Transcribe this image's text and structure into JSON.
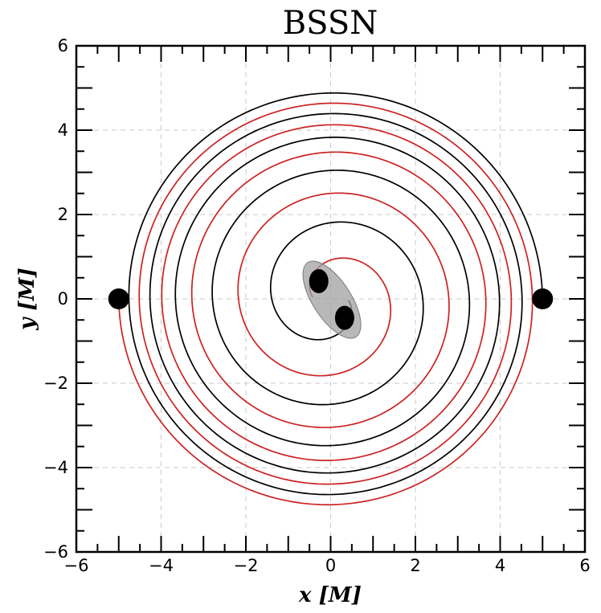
{
  "chart_data": {
    "type": "line",
    "title": "BSSN",
    "xlabel": "x [M]",
    "ylabel": "y [M]",
    "xlim": [
      -6,
      6
    ],
    "ylim": [
      -6,
      6
    ],
    "x_ticks": [
      "−6",
      "−4",
      "−2",
      "0",
      "2",
      "4",
      "6"
    ],
    "y_ticks": [
      "−6",
      "−4",
      "−2",
      "0",
      "2",
      "4",
      "6"
    ],
    "grid": true,
    "series": [
      {
        "color": "#000000",
        "spiral": {
          "start": [
            5.0,
            0.0
          ],
          "start_angle_deg": 0,
          "end_radius": 0.42,
          "end_angle_deg": 1795,
          "radius_at_90deg": 4.88
        }
      },
      {
        "color": "#cc2222",
        "spiral": {
          "start": [
            -5.0,
            0.0
          ],
          "start_angle_deg": 180,
          "end_radius": 0.42,
          "end_angle_deg": 1975,
          "radius_at_90deg": 4.88
        }
      }
    ],
    "black_holes": [
      {
        "x": 5.0,
        "y": 0.0
      },
      {
        "x": -5.0,
        "y": 0.0
      },
      {
        "x": -0.28,
        "y": 0.42
      },
      {
        "x": 0.33,
        "y": -0.45
      }
    ],
    "merger_horizon": {
      "x": 0.03,
      "y": -0.02,
      "rx": 0.45,
      "ry": 1.05,
      "tilt_deg": 33,
      "color": "#a0a0a0"
    }
  }
}
